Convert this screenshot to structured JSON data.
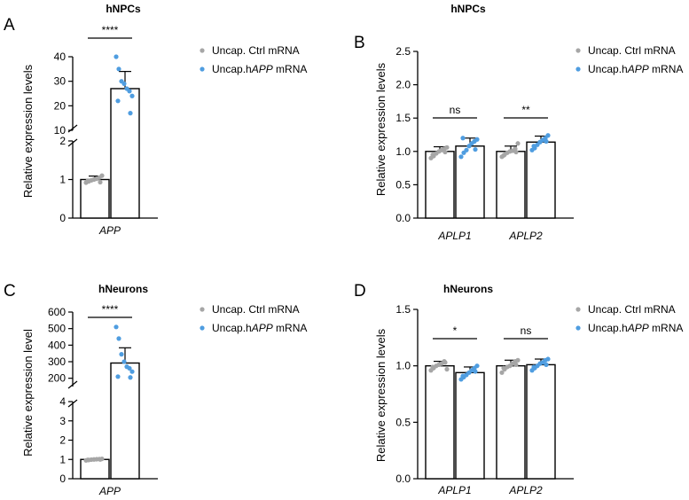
{
  "figure": {
    "colors": {
      "ctrl": "#a6a6a6",
      "app": "#4f9de0",
      "axis": "#000000",
      "bar_fill": "#ffffff"
    }
  },
  "chart_data": [
    {
      "id": "A",
      "panel_label": "A",
      "type": "bar",
      "title": "hNPCs",
      "ylabel": "Relative expression levels",
      "broken_axis": true,
      "ylim_lower": [
        0,
        2
      ],
      "ylim_upper": [
        10,
        40
      ],
      "yticks_lower": [
        "0",
        "1",
        "2"
      ],
      "yticks_upper": [
        "10",
        "20",
        "30",
        "40"
      ],
      "categories": [
        "APP"
      ],
      "legend": [
        "Uncap. Ctrl mRNA",
        "Uncap.hAPP mRNA"
      ],
      "legend_html": [
        "Uncap. Ctrl mRNA",
        "Uncap.h<tspan font-style='italic'>APP</tspan> mRNA"
      ],
      "series": [
        {
          "name": "Uncap. Ctrl mRNA",
          "color": "#a6a6a6",
          "values": [
            1.0
          ],
          "err": [
            0.09
          ],
          "points": [
            [
              0.92,
              0.95,
              0.98,
              1.0,
              1.02,
              1.05,
              1.1,
              0.97,
              0.93
            ]
          ]
        },
        {
          "name": "Uncap.hAPP mRNA",
          "color": "#4f9de0",
          "values": [
            27
          ],
          "err": [
            7
          ],
          "points": [
            [
              40,
              35,
              30,
              29,
              27,
              26,
              24,
              22,
              17
            ]
          ]
        }
      ],
      "significance": [
        {
          "category": "APP",
          "label": "****"
        }
      ]
    },
    {
      "id": "B",
      "panel_label": "B",
      "type": "bar",
      "title": "hNPCs",
      "ylabel": "Relative expression levels",
      "broken_axis": false,
      "ylim": [
        0,
        2.5
      ],
      "yticks": [
        "0.0",
        "0.5",
        "1.0",
        "1.5",
        "2.0",
        "2.5"
      ],
      "categories": [
        "APLP1",
        "APLP2"
      ],
      "legend": [
        "Uncap. Ctrl mRNA",
        "Uncap.hAPP mRNA"
      ],
      "legend_html": [
        "Uncap. Ctrl mRNA",
        "Uncap.h<tspan font-style='italic'>APP</tspan> mRNA"
      ],
      "series": [
        {
          "name": "Uncap. Ctrl mRNA",
          "color": "#a6a6a6",
          "values": [
            1.0,
            1.0
          ],
          "err": [
            0.07,
            0.08
          ],
          "points": [
            [
              0.9,
              0.93,
              0.97,
              1.0,
              1.02,
              1.04,
              1.06,
              0.95,
              0.99
            ],
            [
              0.92,
              0.95,
              0.98,
              1.0,
              1.01,
              1.04,
              1.12,
              0.94,
              0.99
            ]
          ]
        },
        {
          "name": "Uncap.hAPP mRNA",
          "color": "#4f9de0",
          "values": [
            1.08,
            1.14
          ],
          "err": [
            0.12,
            0.09
          ],
          "points": [
            [
              0.92,
              0.98,
              1.02,
              1.08,
              1.12,
              1.15,
              1.18,
              1.2,
              1.03
            ],
            [
              1.02,
              1.05,
              1.1,
              1.14,
              1.17,
              1.2,
              1.24,
              1.08,
              1.15
            ]
          ]
        }
      ],
      "significance": [
        {
          "category": "APLP1",
          "label": "ns"
        },
        {
          "category": "APLP2",
          "label": "**"
        }
      ]
    },
    {
      "id": "C",
      "panel_label": "C",
      "type": "bar",
      "title": "hNeurons",
      "ylabel": "Relative expression level",
      "broken_axis": true,
      "ylim_lower": [
        0,
        4
      ],
      "ylim_upper": [
        150,
        600
      ],
      "yticks_lower": [
        "0",
        "1",
        "2",
        "3",
        "4"
      ],
      "yticks_upper": [
        "200",
        "300",
        "400",
        "500",
        "600"
      ],
      "categories": [
        "APP"
      ],
      "legend": [
        "Uncap. Ctrl mRNA",
        "Uncap.hAPP mRNA"
      ],
      "legend_html": [
        "Uncap. Ctrl mRNA",
        "Uncap.h<tspan font-style='italic'>APP</tspan> mRNA"
      ],
      "series": [
        {
          "name": "Uncap. Ctrl mRNA",
          "color": "#a6a6a6",
          "values": [
            1.0
          ],
          "err": [
            0.05
          ],
          "points": [
            [
              0.95,
              0.97,
              0.99,
              1.0,
              1.01,
              1.02,
              1.03,
              0.98,
              1.0
            ]
          ]
        },
        {
          "name": "Uncap.hAPP mRNA",
          "color": "#4f9de0",
          "values": [
            292
          ],
          "err": [
            92
          ],
          "points": [
            [
              510,
              440,
              345,
              300,
              270,
              260,
              240,
              210,
              205
            ]
          ]
        }
      ],
      "significance": [
        {
          "category": "APP",
          "label": "****"
        }
      ]
    },
    {
      "id": "D",
      "panel_label": "D",
      "type": "bar",
      "title": "hNeurons",
      "ylabel": "Relative expression levels",
      "broken_axis": false,
      "ylim": [
        0,
        1.5
      ],
      "yticks": [
        "0.0",
        "0.5",
        "1.0",
        "1.5"
      ],
      "categories": [
        "APLP1",
        "APLP2"
      ],
      "legend": [
        "Uncap. Ctrl mRNA",
        "Uncap.hAPP mRNA"
      ],
      "legend_html": [
        "Uncap. Ctrl mRNA",
        "Uncap.h<tspan font-style='italic'>APP</tspan> mRNA"
      ],
      "series": [
        {
          "name": "Uncap. Ctrl mRNA",
          "color": "#a6a6a6",
          "values": [
            1.0,
            1.0
          ],
          "err": [
            0.04,
            0.05
          ],
          "points": [
            [
              0.96,
              0.98,
              1.0,
              1.01,
              1.02,
              1.04,
              0.97,
              0.99,
              1.03
            ],
            [
              0.94,
              0.97,
              0.99,
              1.0,
              1.02,
              1.04,
              1.05,
              0.98,
              1.01
            ]
          ]
        },
        {
          "name": "Uncap.hAPP mRNA",
          "color": "#4f9de0",
          "values": [
            0.94,
            1.01
          ],
          "err": [
            0.05,
            0.05
          ],
          "points": [
            [
              0.88,
              0.9,
              0.92,
              0.94,
              0.96,
              0.98,
              1.0,
              0.91,
              0.95
            ],
            [
              0.96,
              0.98,
              1.0,
              1.02,
              1.03,
              1.05,
              1.06,
              0.99,
              1.01
            ]
          ]
        }
      ],
      "significance": [
        {
          "category": "APLP1",
          "label": "*"
        },
        {
          "category": "APLP2",
          "label": "ns"
        }
      ]
    }
  ]
}
